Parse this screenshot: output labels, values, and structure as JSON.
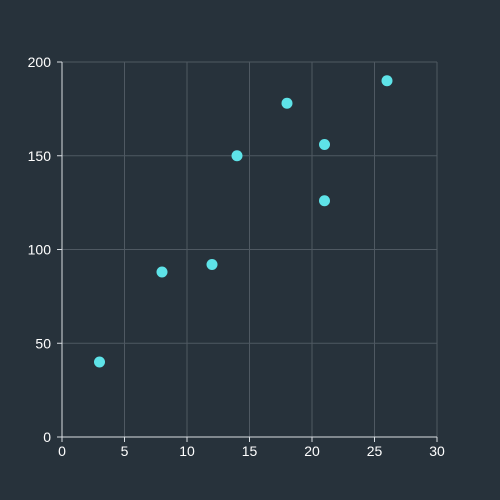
{
  "chart_data": {
    "type": "scatter",
    "title": "",
    "xlabel": "",
    "ylabel": "",
    "xlim": [
      0,
      30
    ],
    "ylim": [
      0,
      200
    ],
    "x_ticks": [
      0,
      5,
      10,
      15,
      20,
      25,
      30
    ],
    "y_ticks": [
      0,
      50,
      100,
      150,
      200
    ],
    "grid": true,
    "legend": "none",
    "colors": {
      "background": "#27323b",
      "grid": "#4f5962",
      "axis": "#d8dde2",
      "point": "#5ee3e8",
      "text": "#ffffff"
    },
    "series": [
      {
        "points": [
          {
            "x": 3,
            "y": 40
          },
          {
            "x": 8,
            "y": 88
          },
          {
            "x": 12,
            "y": 92
          },
          {
            "x": 14,
            "y": 150
          },
          {
            "x": 18,
            "y": 178
          },
          {
            "x": 21,
            "y": 156
          },
          {
            "x": 21,
            "y": 126
          },
          {
            "x": 26,
            "y": 190
          }
        ]
      }
    ]
  }
}
